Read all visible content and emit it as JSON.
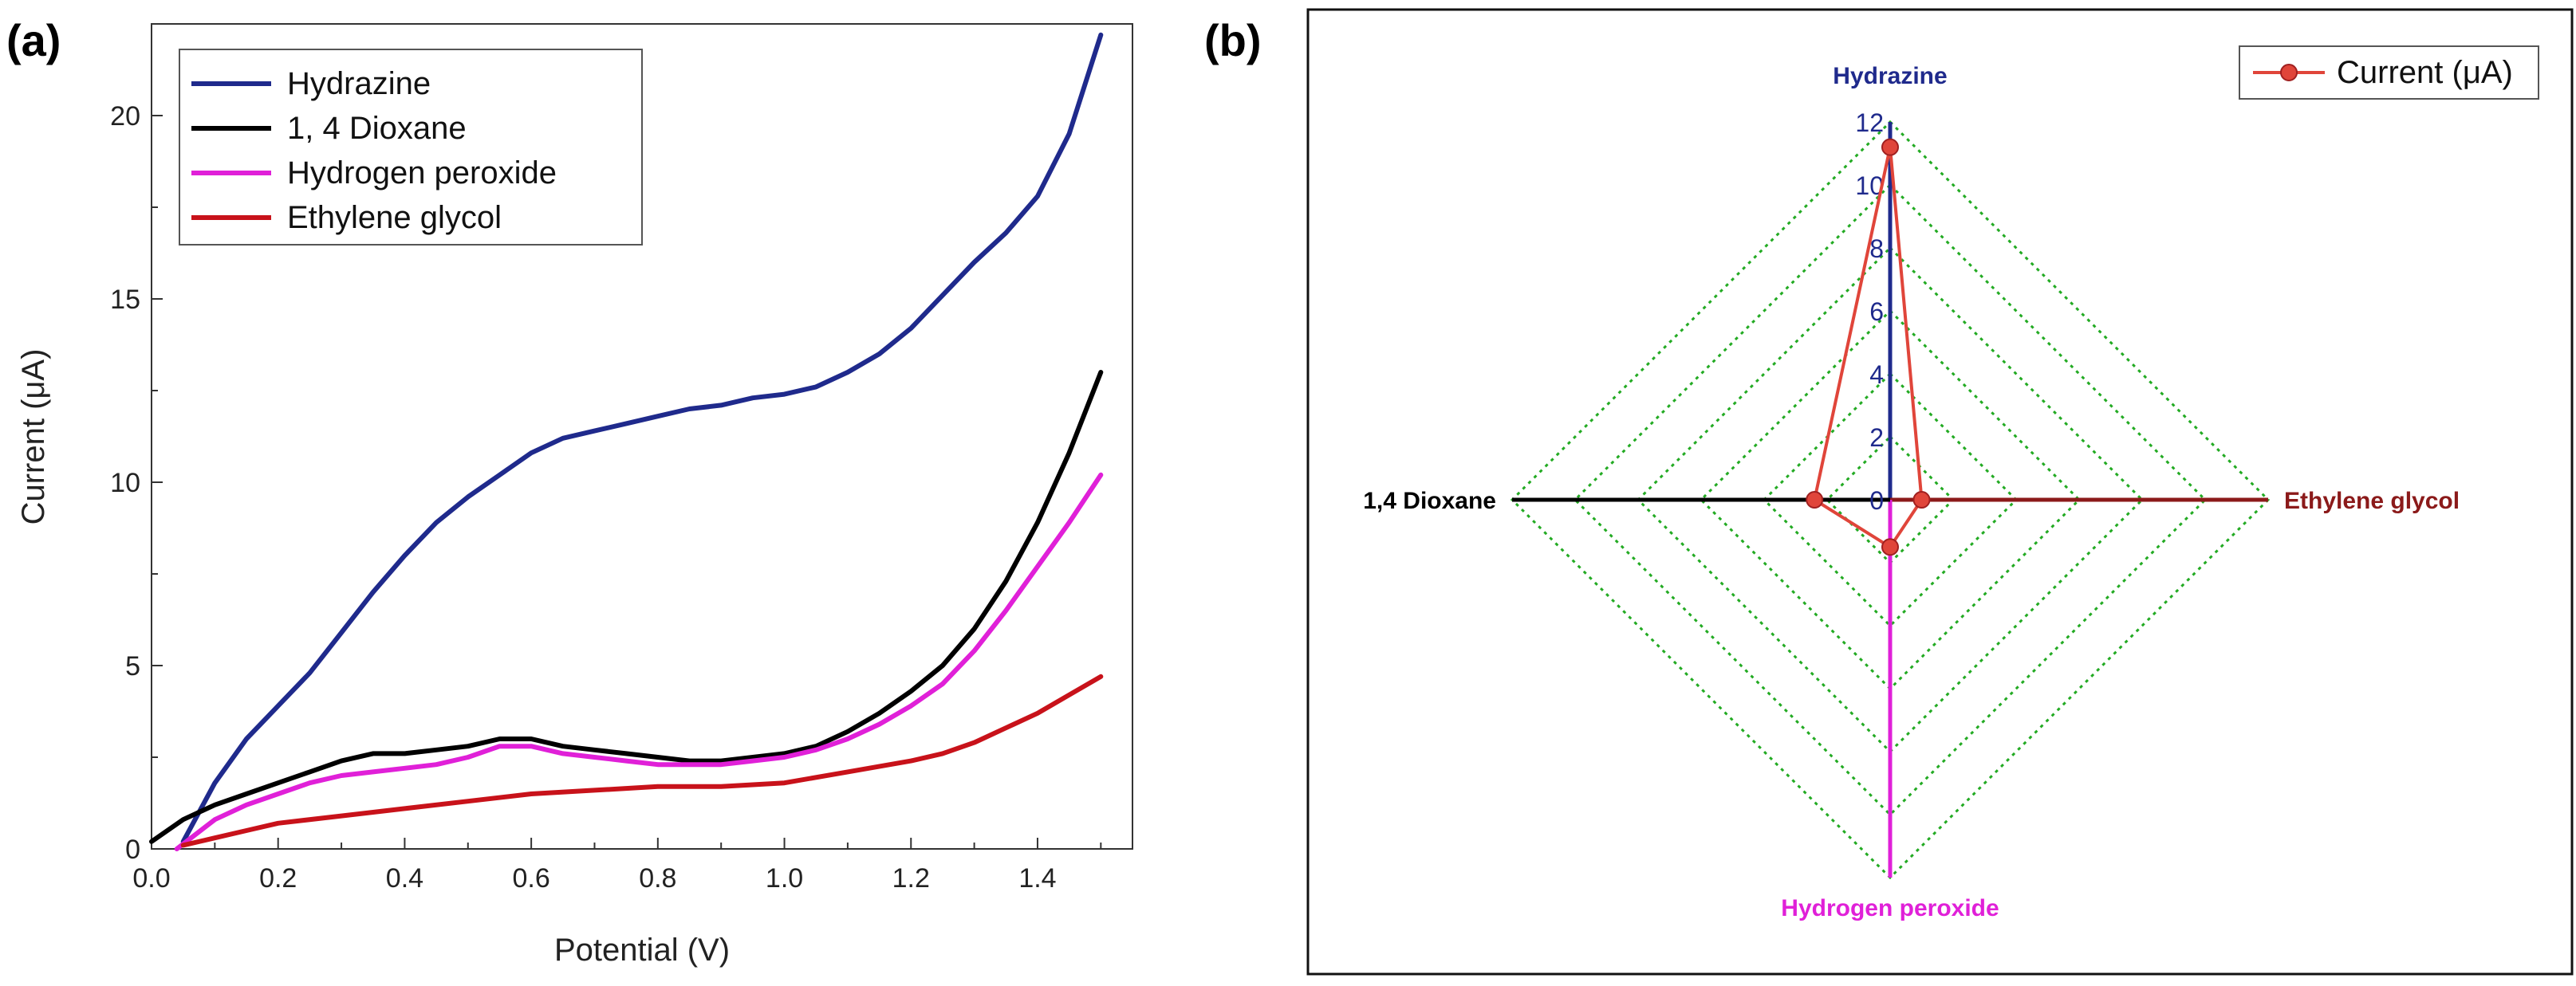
{
  "panels": [
    {
      "label": "(a)"
    },
    {
      "label": "(b)"
    }
  ],
  "chart_data": [
    {
      "type": "line",
      "panel": "(a)",
      "xlabel": "Potential (V)",
      "ylabel": "Current (μA)",
      "xlim": [
        0.0,
        1.55
      ],
      "ylim": [
        0,
        22.5
      ],
      "xticks": [
        "0.0",
        "0.2",
        "0.4",
        "0.6",
        "0.8",
        "1.0",
        "1.2",
        "1.4"
      ],
      "yticks": [
        "0",
        "5",
        "10",
        "15",
        "20"
      ],
      "legend_position": "top-left",
      "series": [
        {
          "name": "Hydrazine",
          "color": "#1f2a8c",
          "x": [
            0.05,
            0.1,
            0.15,
            0.2,
            0.25,
            0.3,
            0.35,
            0.4,
            0.45,
            0.5,
            0.55,
            0.6,
            0.65,
            0.7,
            0.75,
            0.8,
            0.85,
            0.9,
            0.95,
            1.0,
            1.05,
            1.1,
            1.15,
            1.2,
            1.25,
            1.3,
            1.35,
            1.4,
            1.45,
            1.5
          ],
          "y": [
            0.2,
            1.8,
            3.0,
            3.9,
            4.8,
            5.9,
            7.0,
            8.0,
            8.9,
            9.6,
            10.2,
            10.8,
            11.2,
            11.4,
            11.6,
            11.8,
            12.0,
            12.1,
            12.3,
            12.4,
            12.6,
            13.0,
            13.5,
            14.2,
            15.1,
            16.0,
            16.8,
            17.8,
            19.5,
            22.2
          ]
        },
        {
          "name": "1, 4 Dioxane",
          "color": "#000000",
          "x": [
            0.0,
            0.05,
            0.1,
            0.15,
            0.2,
            0.25,
            0.3,
            0.35,
            0.4,
            0.45,
            0.5,
            0.55,
            0.6,
            0.65,
            0.7,
            0.75,
            0.8,
            0.85,
            0.9,
            0.95,
            1.0,
            1.05,
            1.1,
            1.15,
            1.2,
            1.25,
            1.3,
            1.35,
            1.4,
            1.45,
            1.5
          ],
          "y": [
            0.2,
            0.8,
            1.2,
            1.5,
            1.8,
            2.1,
            2.4,
            2.6,
            2.6,
            2.7,
            2.8,
            3.0,
            3.0,
            2.8,
            2.7,
            2.6,
            2.5,
            2.4,
            2.4,
            2.5,
            2.6,
            2.8,
            3.2,
            3.7,
            4.3,
            5.0,
            6.0,
            7.3,
            8.9,
            10.8,
            13.0
          ]
        },
        {
          "name": "Hydrogen peroxide",
          "color": "#e020d8",
          "x": [
            0.04,
            0.1,
            0.15,
            0.2,
            0.25,
            0.3,
            0.35,
            0.4,
            0.45,
            0.5,
            0.55,
            0.6,
            0.65,
            0.7,
            0.75,
            0.8,
            0.85,
            0.9,
            0.95,
            1.0,
            1.05,
            1.1,
            1.15,
            1.2,
            1.25,
            1.3,
            1.35,
            1.4,
            1.45,
            1.5
          ],
          "y": [
            0.0,
            0.8,
            1.2,
            1.5,
            1.8,
            2.0,
            2.1,
            2.2,
            2.3,
            2.5,
            2.8,
            2.8,
            2.6,
            2.5,
            2.4,
            2.3,
            2.3,
            2.3,
            2.4,
            2.5,
            2.7,
            3.0,
            3.4,
            3.9,
            4.5,
            5.4,
            6.5,
            7.7,
            8.9,
            10.2
          ]
        },
        {
          "name": "Ethylene glycol",
          "color": "#c8121a",
          "x": [
            0.05,
            0.1,
            0.15,
            0.2,
            0.3,
            0.4,
            0.5,
            0.6,
            0.7,
            0.8,
            0.9,
            1.0,
            1.1,
            1.2,
            1.25,
            1.3,
            1.35,
            1.4,
            1.45,
            1.5
          ],
          "y": [
            0.1,
            0.3,
            0.5,
            0.7,
            0.9,
            1.1,
            1.3,
            1.5,
            1.6,
            1.7,
            1.7,
            1.8,
            2.1,
            2.4,
            2.6,
            2.9,
            3.3,
            3.7,
            4.2,
            4.7
          ]
        }
      ]
    },
    {
      "type": "radar",
      "panel": "(b)",
      "scale": {
        "min": 0,
        "max": 12,
        "step": 2
      },
      "tick_labels": [
        "0",
        "2",
        "4",
        "6",
        "8",
        "10",
        "12"
      ],
      "grid_color": "#22aa22",
      "legend": {
        "label": "Current (μA)",
        "color": "#e0453a",
        "position": "top-right"
      },
      "axes": [
        {
          "name": "Hydrazine",
          "direction": "up",
          "color": "#1f2a8c",
          "value": 11.2
        },
        {
          "name": "Ethylene glycol",
          "direction": "right",
          "color": "#8b1a1a",
          "value": 1.0
        },
        {
          "name": "Hydrogen peroxide",
          "direction": "down",
          "color": "#e020d8",
          "value": 1.5
        },
        {
          "name": "1,4 Dioxane",
          "direction": "left",
          "color": "#000000",
          "value": 2.4
        }
      ]
    }
  ]
}
